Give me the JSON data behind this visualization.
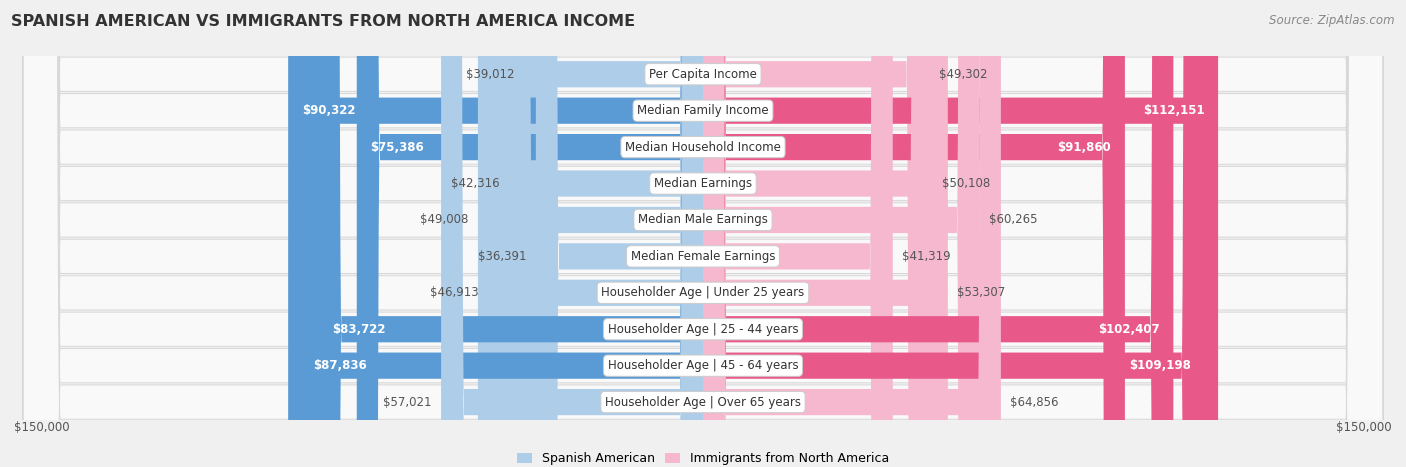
{
  "title": "SPANISH AMERICAN VS IMMIGRANTS FROM NORTH AMERICA INCOME",
  "source": "Source: ZipAtlas.com",
  "categories": [
    "Per Capita Income",
    "Median Family Income",
    "Median Household Income",
    "Median Earnings",
    "Median Male Earnings",
    "Median Female Earnings",
    "Householder Age | Under 25 years",
    "Householder Age | 25 - 44 years",
    "Householder Age | 45 - 64 years",
    "Householder Age | Over 65 years"
  ],
  "left_values": [
    39012,
    90322,
    75386,
    42316,
    49008,
    36391,
    46913,
    83722,
    87836,
    57021
  ],
  "right_values": [
    49302,
    112151,
    91860,
    50108,
    60265,
    41319,
    53307,
    102407,
    109198,
    64856
  ],
  "left_labels": [
    "$39,012",
    "$90,322",
    "$75,386",
    "$42,316",
    "$49,008",
    "$36,391",
    "$46,913",
    "$83,722",
    "$87,836",
    "$57,021"
  ],
  "right_labels": [
    "$49,302",
    "$112,151",
    "$91,860",
    "$50,108",
    "$60,265",
    "$41,319",
    "$53,307",
    "$102,407",
    "$109,198",
    "$64,856"
  ],
  "left_color_light": "#aecde8",
  "left_color_dark": "#5b9bd5",
  "right_color_light": "#f5b8ce",
  "right_color_dark": "#e8598a",
  "max_value": 150000,
  "legend_left": "Spanish American",
  "legend_right": "Immigrants from North America",
  "bg_color": "#f0f0f0",
  "row_bg": "#f9f9f9",
  "row_border": "#d8d8d8",
  "inside_label_threshold": 75000,
  "title_fontsize": 11.5,
  "source_fontsize": 8.5,
  "bar_label_fontsize": 8.5,
  "category_fontsize": 8.5,
  "axis_label_fontsize": 8.5
}
